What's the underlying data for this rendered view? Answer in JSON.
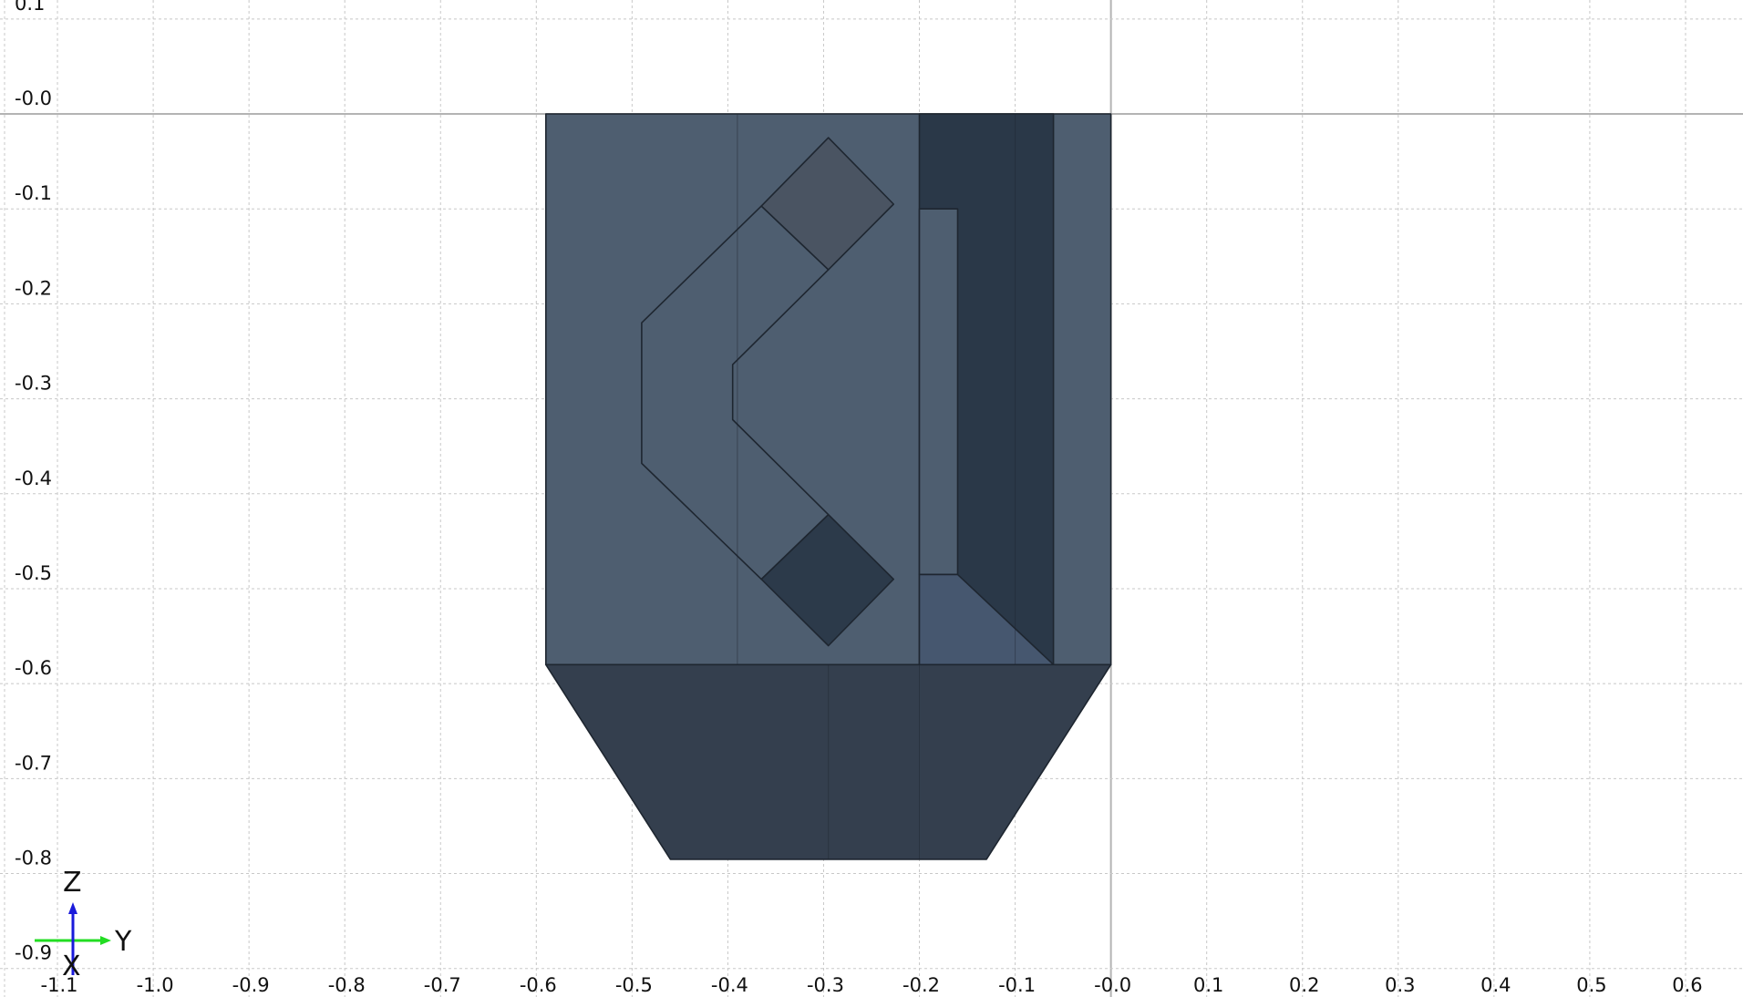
{
  "viewport": {
    "view": "front",
    "horizontal_axis": "Y",
    "vertical_axis": "Z",
    "y_range": [
      -1.16,
      0.66
    ],
    "z_range": [
      -0.93,
      0.12
    ],
    "y_step": 0.1,
    "z_step": 0.1,
    "grid": true
  },
  "x_ticks": [
    {
      "value": -1.1,
      "label": "-1.1"
    },
    {
      "value": -1.0,
      "label": "-1.0"
    },
    {
      "value": -0.9,
      "label": "-0.9"
    },
    {
      "value": -0.8,
      "label": "-0.8"
    },
    {
      "value": -0.7,
      "label": "-0.7"
    },
    {
      "value": -0.6,
      "label": "-0.6"
    },
    {
      "value": -0.5,
      "label": "-0.5"
    },
    {
      "value": -0.4,
      "label": "-0.4"
    },
    {
      "value": -0.3,
      "label": "-0.3"
    },
    {
      "value": -0.2,
      "label": "-0.2"
    },
    {
      "value": -0.1,
      "label": "-0.1"
    },
    {
      "value": 0.0,
      "label": "-0.0"
    },
    {
      "value": 0.1,
      "label": "0.1"
    },
    {
      "value": 0.2,
      "label": "0.2"
    },
    {
      "value": 0.3,
      "label": "0.3"
    },
    {
      "value": 0.4,
      "label": "0.4"
    },
    {
      "value": 0.5,
      "label": "0.5"
    },
    {
      "value": 0.6,
      "label": "0.6"
    }
  ],
  "y_ticks": [
    {
      "value": 0.1,
      "label": "0.1"
    },
    {
      "value": 0.0,
      "label": "-0.0"
    },
    {
      "value": -0.1,
      "label": "-0.1"
    },
    {
      "value": -0.2,
      "label": "-0.2"
    },
    {
      "value": -0.3,
      "label": "-0.3"
    },
    {
      "value": -0.4,
      "label": "-0.4"
    },
    {
      "value": -0.5,
      "label": "-0.5"
    },
    {
      "value": -0.6,
      "label": "-0.6"
    },
    {
      "value": -0.7,
      "label": "-0.7"
    },
    {
      "value": -0.8,
      "label": "-0.8"
    },
    {
      "value": -0.9,
      "label": "-0.9"
    }
  ],
  "colors": {
    "body": "#4e5e70",
    "body_dark": "#2a3848",
    "bottom_trapezoid": "#343f4e",
    "diamond_top": "#4a5462",
    "diamond_bottom": "#2c3a4a",
    "triangle": "#46576f",
    "slot": "#4e5e70",
    "edge": "#1e2630",
    "triad_y": "#22dd22",
    "triad_z": "#1a1adb",
    "triad_x": "#0d0d6a"
  },
  "shapes": [
    {
      "name": "main-body-face",
      "fill": "body",
      "points": [
        [
          -0.59,
          0.0
        ],
        [
          -0.0,
          0.0
        ],
        [
          -0.0,
          -0.58
        ],
        [
          -0.59,
          -0.58
        ]
      ]
    },
    {
      "name": "dark-channel-face",
      "fill": "body_dark",
      "points": [
        [
          -0.2,
          0.0
        ],
        [
          -0.06,
          0.0
        ],
        [
          -0.06,
          -0.58
        ],
        [
          -0.2,
          -0.58
        ]
      ]
    },
    {
      "name": "slot-face",
      "fill": "slot",
      "points": [
        [
          -0.2,
          -0.1
        ],
        [
          -0.16,
          -0.1
        ],
        [
          -0.16,
          -0.485
        ],
        [
          -0.2,
          -0.485
        ]
      ]
    },
    {
      "name": "triangle-face",
      "fill": "triangle",
      "points": [
        [
          -0.2,
          -0.485
        ],
        [
          -0.16,
          -0.485
        ],
        [
          -0.06,
          -0.58
        ],
        [
          -0.2,
          -0.58
        ]
      ]
    },
    {
      "name": "bottom-trapezoid-face",
      "fill": "bottom_trapezoid",
      "points": [
        [
          -0.59,
          -0.58
        ],
        [
          -0.0,
          -0.58
        ],
        [
          -0.13,
          -0.785
        ],
        [
          -0.46,
          -0.785
        ]
      ]
    },
    {
      "name": "chevron-face",
      "fill": "body",
      "points": [
        [
          -0.365,
          -0.097
        ],
        [
          -0.295,
          -0.164
        ],
        [
          -0.395,
          -0.264
        ],
        [
          -0.395,
          -0.322
        ],
        [
          -0.295,
          -0.422
        ],
        [
          -0.365,
          -0.49
        ],
        [
          -0.49,
          -0.368
        ],
        [
          -0.49,
          -0.22
        ]
      ]
    },
    {
      "name": "diamond-top-face",
      "fill": "diamond_top",
      "points": [
        [
          -0.295,
          -0.025
        ],
        [
          -0.227,
          -0.095
        ],
        [
          -0.295,
          -0.164
        ],
        [
          -0.365,
          -0.097
        ]
      ]
    },
    {
      "name": "diamond-bottom-face",
      "fill": "diamond_bottom",
      "points": [
        [
          -0.295,
          -0.422
        ],
        [
          -0.227,
          -0.49
        ],
        [
          -0.295,
          -0.56
        ],
        [
          -0.365,
          -0.49
        ]
      ]
    }
  ],
  "edges": [
    {
      "name": "ridge-line-left",
      "points": [
        [
          -0.39,
          0.0
        ],
        [
          -0.39,
          -0.58
        ]
      ]
    },
    {
      "name": "ridge-line-mid",
      "points": [
        [
          -0.295,
          -0.58
        ],
        [
          -0.295,
          -0.785
        ]
      ]
    },
    {
      "name": "ridge-line-channel",
      "points": [
        [
          -0.2,
          -0.58
        ],
        [
          -0.2,
          -0.785
        ]
      ]
    },
    {
      "name": "ridge-line-right",
      "points": [
        [
          -0.1,
          0.0
        ],
        [
          -0.1,
          -0.58
        ]
      ]
    }
  ],
  "triad": {
    "labels": {
      "z": "Z",
      "y": "Y",
      "x": "X"
    }
  }
}
